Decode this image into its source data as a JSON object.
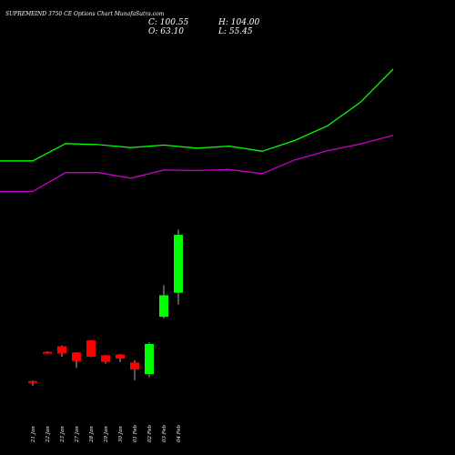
{
  "header": {
    "title": "SUPREMEIND 3750  CE Options  Chart MunafaSutra.com",
    "close_text": "C: 100.55",
    "open_text": "O: 63.10",
    "high_text": "H: 104.00",
    "low_text": "L: 55.45"
  },
  "colors": {
    "background": "#000000",
    "up_candle": "#00ff00",
    "down_candle": "#ff0000",
    "upper_band": "#00ff00",
    "lower_band": "#cc00cc",
    "text": "#ffffff"
  },
  "chart_data": {
    "type": "candlestick",
    "title": "SUPREMEIND 3750  CE Options  Chart MunafaSutra.com",
    "categories": [
      "21 Jan",
      "22 Jan",
      "23 Jan",
      "27 Jan",
      "28 Jan",
      "29 Jan",
      "30 Jan",
      "01 Feb",
      "02 Feb",
      "03 Feb",
      "04 Feb"
    ],
    "candles": [
      {
        "date": "21 Jan",
        "open": 6.0,
        "high": 6.5,
        "low": 3.0,
        "close": 5.5
      },
      {
        "date": "22 Jan",
        "open": 24.9,
        "high": 25.3,
        "low": 24.3,
        "close": 24.6
      },
      {
        "date": "23 Jan",
        "open": 28.5,
        "high": 29.0,
        "low": 21.8,
        "close": 23.8
      },
      {
        "date": "27 Jan",
        "open": 24.5,
        "high": 24.6,
        "low": 14.5,
        "close": 19.0
      },
      {
        "date": "28 Jan",
        "open": 32.3,
        "high": 32.6,
        "low": 21.5,
        "close": 21.8
      },
      {
        "date": "29 Jan",
        "open": 22.7,
        "high": 23.0,
        "low": 17.3,
        "close": 18.5
      },
      {
        "date": "30 Jan",
        "open": 23.2,
        "high": 23.5,
        "low": 18.2,
        "close": 20.5
      },
      {
        "date": "01 Feb",
        "open": 18.0,
        "high": 19.5,
        "low": 6.5,
        "close": 13.5
      },
      {
        "date": "02 Feb",
        "open": 10.5,
        "high": 31.0,
        "low": 8.5,
        "close": 30.0
      },
      {
        "date": "03 Feb",
        "open": 47.6,
        "high": 68.0,
        "low": 46.5,
        "close": 61.5
      },
      {
        "date": "04 Feb",
        "open": 63.1,
        "high": 104.0,
        "low": 55.45,
        "close": 100.55
      }
    ],
    "bands": {
      "x_positions": [
        0,
        1,
        2,
        3,
        4,
        5,
        6,
        7,
        8,
        9,
        10,
        11,
        12
      ],
      "upper": [
        120,
        120,
        154,
        152,
        146,
        151,
        145,
        149,
        139,
        160,
        189,
        235,
        300
      ],
      "lower": [
        60,
        60,
        97,
        97,
        86,
        102,
        101,
        103,
        95,
        122,
        140,
        153,
        170
      ]
    }
  }
}
